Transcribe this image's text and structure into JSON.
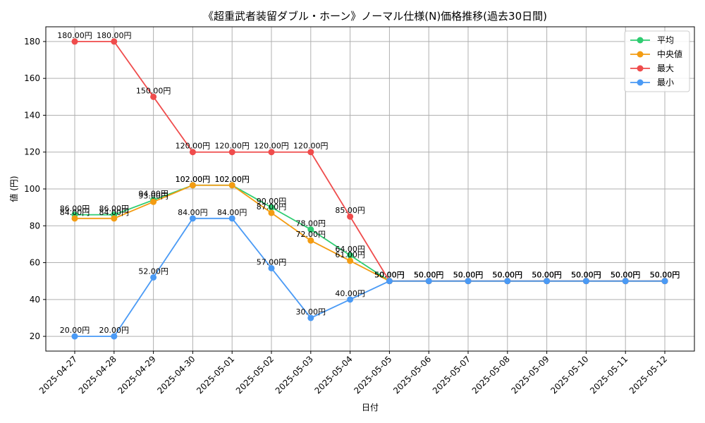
{
  "chart_data": {
    "type": "line",
    "title": "《超重武者装留ダブル・ホーン》ノーマル仕様(N)価格推移(過去30日間)",
    "xlabel": "日付",
    "ylabel": "値 (円)",
    "ylim": [
      12,
      188
    ],
    "yticks": [
      20,
      40,
      60,
      80,
      100,
      120,
      140,
      160,
      180
    ],
    "grid": true,
    "legend_position": "top-right",
    "categories": [
      "2025-04-27",
      "2025-04-28",
      "2025-04-29",
      "2025-04-30",
      "2025-05-01",
      "2025-05-02",
      "2025-05-03",
      "2025-05-04",
      "2025-05-05",
      "2025-05-06",
      "2025-05-07",
      "2025-05-08",
      "2025-05-09",
      "2025-05-10",
      "2025-05-11",
      "2025-05-12"
    ],
    "series": [
      {
        "name": "平均",
        "color": "#2ecc71",
        "values": [
          86,
          86,
          94,
          102,
          102,
          90,
          78,
          64,
          50,
          50,
          50,
          50,
          50,
          50,
          50,
          50
        ],
        "labels": [
          "86.00円",
          "86.00円",
          "94.00円",
          "102.00円",
          "102.00円",
          "90.00円",
          "78.00円",
          "64.00円",
          "50.00円",
          "50.00円",
          "50.00円",
          "50.00円",
          "50.00円",
          "50.00円",
          "50.00円",
          "50.00円"
        ]
      },
      {
        "name": "中央値",
        "color": "#f39c12",
        "values": [
          84,
          84,
          93,
          102,
          102,
          87,
          72,
          61,
          50,
          50,
          50,
          50,
          50,
          50,
          50,
          50
        ],
        "labels": [
          "84.00円",
          "84.00円",
          "93.00円",
          "102.00円",
          "102.00円",
          "87.00円",
          "72.00円",
          "61.00円",
          "50.00円",
          "50.00円",
          "50.00円",
          "50.00円",
          "50.00円",
          "50.00円",
          "50.00円",
          "50.00円"
        ]
      },
      {
        "name": "最大",
        "color": "#ef4c4c",
        "values": [
          180,
          180,
          150,
          120,
          120,
          120,
          120,
          85,
          50,
          50,
          50,
          50,
          50,
          50,
          50,
          50
        ],
        "labels": [
          "180.00円",
          "180.00円",
          "150.00円",
          "120.00円",
          "120.00円",
          "120.00円",
          "120.00円",
          "85.00円",
          "50.00円",
          "50.00円",
          "50.00円",
          "50.00円",
          "50.00円",
          "50.00円",
          "50.00円",
          "50.00円"
        ]
      },
      {
        "name": "最小",
        "color": "#4a9af5",
        "values": [
          20,
          20,
          52,
          84,
          84,
          57,
          30,
          40,
          50,
          50,
          50,
          50,
          50,
          50,
          50,
          50
        ],
        "labels": [
          "20.00円",
          "20.00円",
          "52.00円",
          "84.00円",
          "84.00円",
          "57.00円",
          "30.00円",
          "40.00円",
          "50.00円",
          "50.00円",
          "50.00円",
          "50.00円",
          "50.00円",
          "50.00円",
          "50.00円",
          "50.00円"
        ]
      }
    ]
  }
}
